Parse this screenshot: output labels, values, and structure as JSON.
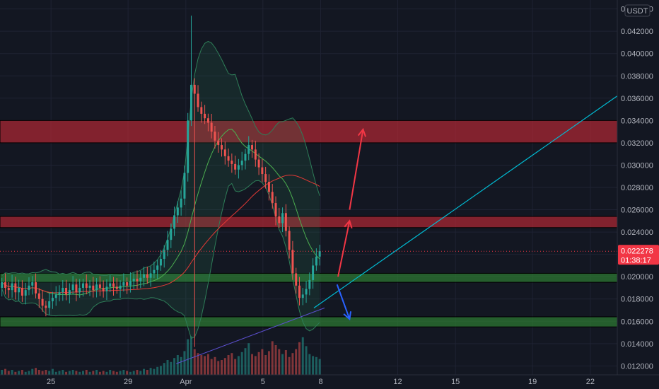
{
  "currency_button": "USDT",
  "price_tag": {
    "price": "0.022278",
    "countdown": "01:38:17",
    "color": "#f23645"
  },
  "colors": {
    "background": "#131722",
    "grid": "#1f2333",
    "up": "#26a69a",
    "down": "#ef5350",
    "resistance_zone": "#b22833",
    "support_zone": "#2e7d32",
    "trendline": "#00bcd4",
    "bb_band": "#2e7d58",
    "ma_short": "#4caf50",
    "ma_long": "#e53935",
    "long_trend": "#5c4fcf",
    "arrow_up": "#f23645",
    "arrow_down": "#2962ff"
  },
  "chart_data": {
    "type": "candlestick",
    "pair_quote": "USDT",
    "x_axis": {
      "ticks": [
        {
          "label": "25",
          "day": 25
        },
        {
          "label": "29",
          "day": 29
        },
        {
          "label": "Apr",
          "day": 32
        },
        {
          "label": "5",
          "day": 36
        },
        {
          "label": "8",
          "day": 39
        },
        {
          "label": "12",
          "day": 43
        },
        {
          "label": "15",
          "day": 46
        },
        {
          "label": "19",
          "day": 50
        },
        {
          "label": "22",
          "day": 53
        }
      ],
      "range": [
        22.35,
        54.4
      ]
    },
    "y_axis": {
      "range": [
        0.0112,
        0.0448
      ],
      "ticks": [
        "0.044000",
        "0.042000",
        "0.040000",
        "0.038000",
        "0.036000",
        "0.034000",
        "0.032000",
        "0.030000",
        "0.028000",
        "0.026000",
        "0.024000",
        "0.022000",
        "0.020000",
        "0.018000",
        "0.016000",
        "0.014000",
        "0.012000"
      ]
    },
    "last_price": 0.022278,
    "zones": [
      {
        "kind": "resistance",
        "low": 0.032,
        "high": 0.034
      },
      {
        "kind": "resistance",
        "low": 0.0244,
        "high": 0.0254
      },
      {
        "kind": "support",
        "low": 0.0195,
        "high": 0.0203
      },
      {
        "kind": "support",
        "low": 0.0155,
        "high": 0.0164
      }
    ],
    "trendline": {
      "from": [
        38.65,
        0.0172
      ],
      "to": [
        54.4,
        0.0362
      ]
    },
    "arrows": [
      {
        "direction": "up",
        "from": [
          39.9,
          0.02
        ],
        "to": [
          40.5,
          0.025
        ]
      },
      {
        "direction": "up",
        "from": [
          40.5,
          0.026
        ],
        "to": [
          41.2,
          0.0332
        ]
      },
      {
        "direction": "down",
        "from": [
          39.85,
          0.0193
        ],
        "to": [
          40.5,
          0.0162
        ]
      }
    ],
    "series": {
      "close": [
        0.0195,
        0.019,
        0.0188,
        0.0194,
        0.0186,
        0.019,
        0.0183,
        0.0188,
        0.0192,
        0.0195,
        0.0185,
        0.018,
        0.0174,
        0.0172,
        0.0178,
        0.0181,
        0.0184,
        0.0186,
        0.019,
        0.0184,
        0.0188,
        0.0193,
        0.0186,
        0.019,
        0.0194,
        0.019,
        0.0192,
        0.0188,
        0.0193,
        0.019,
        0.0187,
        0.0191,
        0.0194,
        0.0191,
        0.0189,
        0.0192,
        0.0195,
        0.0192,
        0.0196,
        0.0198,
        0.0196,
        0.0199,
        0.0202,
        0.0199,
        0.0203,
        0.0206,
        0.021,
        0.0216,
        0.0224,
        0.0233,
        0.0243,
        0.0255,
        0.0262,
        0.027,
        0.0293,
        0.034,
        0.0372,
        0.0364,
        0.0352,
        0.0346,
        0.0342,
        0.0338,
        0.033,
        0.0322,
        0.0318,
        0.0314,
        0.0308,
        0.0304,
        0.0301,
        0.0296,
        0.03,
        0.0304,
        0.031,
        0.0318,
        0.0314,
        0.0305,
        0.0298,
        0.0292,
        0.0285,
        0.0276,
        0.0266,
        0.0254,
        0.0248,
        0.0257,
        0.0241,
        0.0224,
        0.0203,
        0.0192,
        0.0181,
        0.0184,
        0.0189,
        0.0197,
        0.021,
        0.0218,
        0.0223
      ],
      "volume": [
        0.5,
        0.6,
        0.4,
        0.5,
        0.3,
        0.4,
        0.5,
        0.3,
        0.4,
        0.6,
        0.7,
        0.5,
        0.4,
        0.5,
        0.4,
        0.6,
        0.3,
        0.4,
        0.5,
        0.3,
        0.4,
        0.5,
        0.4,
        0.3,
        0.4,
        0.5,
        0.3,
        0.4,
        0.5,
        0.3,
        0.4,
        0.3,
        0.5,
        0.4,
        0.3,
        0.4,
        0.5,
        0.4,
        0.3,
        0.4,
        0.5,
        0.4,
        0.6,
        0.5,
        0.7,
        0.6,
        0.8,
        0.9,
        1.2,
        1.5,
        1.3,
        1.7,
        2.0,
        1.8,
        2.4,
        3.6,
        3.9,
        2.6,
        2.2,
        2.0,
        1.9,
        2.1,
        1.6,
        1.8,
        1.4,
        1.5,
        1.7,
        2.0,
        2.2,
        1.6,
        1.9,
        2.3,
        2.7,
        3.2,
        2.1,
        1.9,
        2.3,
        2.6,
        2.0,
        2.4,
        3.4,
        3.0,
        2.6,
        2.1,
        2.5,
        1.8,
        2.2,
        2.6,
        3.3,
        3.8,
        2.9,
        2.1,
        1.9,
        1.8,
        1.6
      ]
    }
  }
}
